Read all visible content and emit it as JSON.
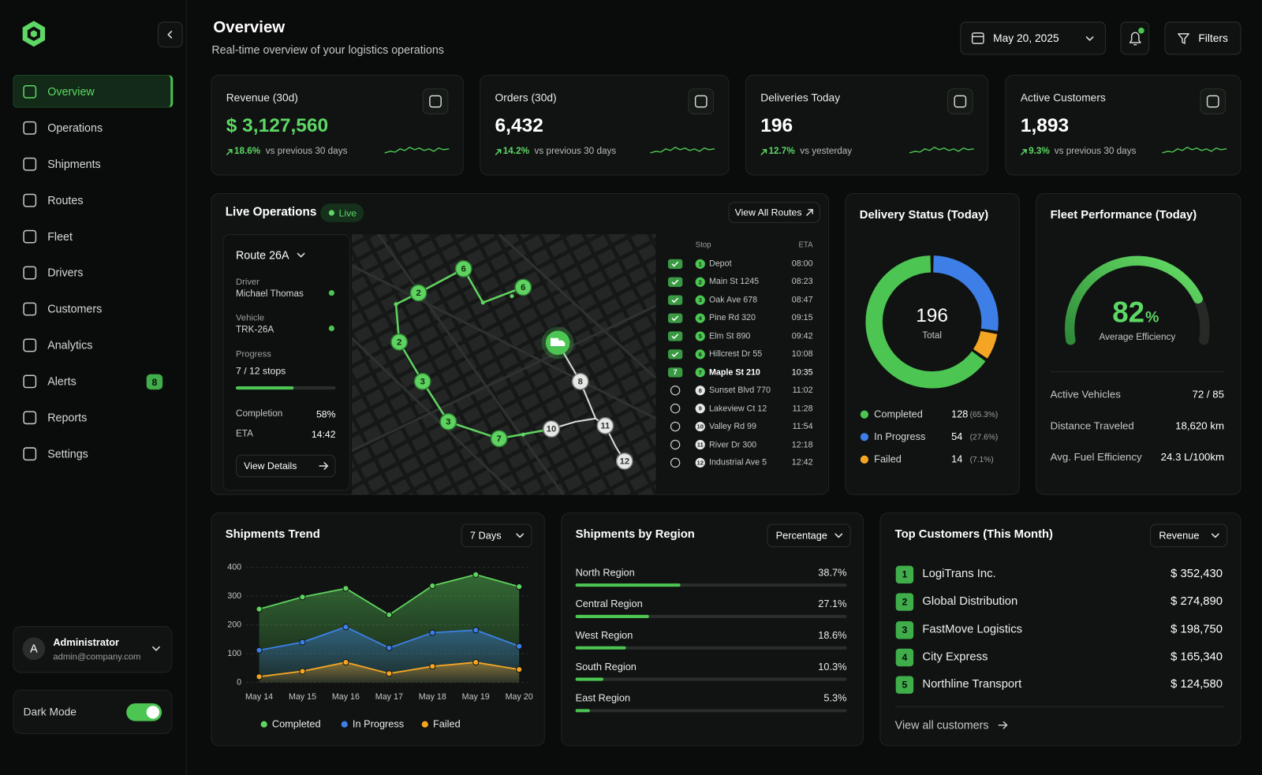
{
  "sidebar": {
    "nav": [
      "Overview",
      "Operations",
      "Shipments",
      "Routes",
      "Fleet",
      "Drivers",
      "Customers",
      "Analytics",
      "Alerts",
      "Reports",
      "Settings"
    ],
    "alerts_count": 8,
    "user": {
      "initial": "A",
      "name": "Administrator",
      "email": "admin@company.com"
    },
    "dark_mode": "Dark Mode"
  },
  "header": {
    "title": "Overview",
    "subtitle": "Real-time overview of your logistics operations",
    "date": "May 20, 2025",
    "filters": "Filters"
  },
  "kpis": [
    {
      "label": "Revenue (30d)",
      "value": "$ 3,127,560",
      "change": "18.6%",
      "note": "vs previous 30 days"
    },
    {
      "label": "Orders (30d)",
      "value": "6,432",
      "change": "14.2%",
      "note": "vs previous 30 days"
    },
    {
      "label": "Deliveries Today",
      "value": "196",
      "change": "12.7%",
      "note": "vs yesterday"
    },
    {
      "label": "Active Customers",
      "value": "1,893",
      "change": "9.3%",
      "note": "vs previous 30 days"
    }
  ],
  "live_operations": {
    "title": "Live Operations",
    "badge": "Live",
    "button": "View All Routes",
    "route": {
      "name": "Route 26A",
      "driver_label": "Driver",
      "driver": "Michael Thomas",
      "vehicle_label": "Vehicle",
      "vehicle": "TRK-26A",
      "progress_label": "Progress",
      "progress": "7 / 12 stops",
      "completion": {
        "label": "Completion",
        "value": 58,
        "value_label": "58%"
      },
      "eta_label": "ETA",
      "eta": "14:42",
      "details_button": "View Details"
    },
    "stops_header": [
      "Stop",
      "ETA"
    ],
    "stops": [
      {
        "number": 1,
        "name": "Depot",
        "eta": "08:00",
        "status": "done"
      },
      {
        "number": 2,
        "name": "Main St 1245",
        "eta": "08:23",
        "status": "done"
      },
      {
        "number": 3,
        "name": "Oak Ave 678",
        "eta": "08:47",
        "status": "done"
      },
      {
        "number": 4,
        "name": "Pine Rd 320",
        "eta": "09:15",
        "status": "done"
      },
      {
        "number": 5,
        "name": "Elm St 890",
        "eta": "09:42",
        "status": "done"
      },
      {
        "number": 6,
        "name": "Hillcrest Dr 55",
        "eta": "10:08",
        "status": "done"
      },
      {
        "number": 7,
        "name": "Maple St 210",
        "eta": "10:35",
        "status": "current"
      },
      {
        "number": 8,
        "name": "Sunset Blvd 770",
        "eta": "11:02",
        "status": "pending"
      },
      {
        "number": 9,
        "name": "Lakeview Ct 12",
        "eta": "11:28",
        "status": "pending"
      },
      {
        "number": 10,
        "name": "Valley Rd 99",
        "eta": "11:54",
        "status": "pending"
      },
      {
        "number": 11,
        "name": "River Dr 300",
        "eta": "12:18",
        "status": "pending"
      },
      {
        "number": 12,
        "name": "Industrial Ave 5",
        "eta": "12:42",
        "status": "pending"
      }
    ]
  },
  "fleet": {
    "title": "Fleet Performance (Today)",
    "efficiency": 82,
    "unit": "%",
    "efficiency_label": "Average Efficiency",
    "range": [
      0,
      100
    ],
    "stats": [
      {
        "label": "Active Vehicles",
        "value": "72 / 85"
      },
      {
        "label": "Distance Traveled",
        "value": "18,620 km"
      },
      {
        "label": "Avg. Fuel Efficiency",
        "value": "24.3 L/100km"
      }
    ]
  },
  "chart_data": [
    {
      "type": "line",
      "title": "Shipments Trend",
      "control": "7 Days",
      "categories": [
        "May 14",
        "May 15",
        "May 16",
        "May 17",
        "May 18",
        "May 19",
        "May 20"
      ],
      "series": [
        {
          "name": "Completed",
          "color": "#5fd35f",
          "values": [
            255,
            297,
            327,
            235,
            336,
            375,
            333
          ]
        },
        {
          "name": "In Progress",
          "color": "#3d7fe6",
          "values": [
            112,
            140,
            193,
            120,
            173,
            182,
            126
          ]
        },
        {
          "name": "Failed",
          "color": "#f5a524",
          "values": [
            20,
            39,
            70,
            31,
            56,
            70,
            45
          ]
        }
      ],
      "ylim": [
        0,
        400
      ],
      "yticks": [
        0,
        100,
        200,
        300,
        400
      ],
      "grid": true,
      "area": true
    },
    {
      "type": "bar",
      "orientation": "horizontal",
      "title": "Shipments by Region",
      "control": "Percentage",
      "categories": [
        "North Region",
        "Central Region",
        "West Region",
        "South Region",
        "East Region"
      ],
      "values": [
        38.7,
        27.1,
        18.6,
        10.3,
        5.3
      ],
      "value_labels": [
        "38.7%",
        "27.1%",
        "18.6%",
        "10.3%",
        "5.3%"
      ],
      "xlim": [
        0,
        100
      ],
      "color": "#4cc552"
    },
    {
      "type": "pie",
      "donut": true,
      "title": "Delivery Status (Today)",
      "center_value": 196,
      "center_label": "Total",
      "categories": [
        "Completed",
        "In Progress",
        "Failed"
      ],
      "values": [
        128,
        54,
        14
      ],
      "percents": [
        65.3,
        27.6,
        7.1
      ],
      "percent_labels": [
        "(65.3%)",
        "(27.6%)",
        "(7.1%)"
      ],
      "colors": [
        "#4cc552",
        "#3d7fe6",
        "#f5a524"
      ]
    }
  ],
  "top_customers": {
    "title": "Top Customers (This Month)",
    "control": "Revenue",
    "rows": [
      {
        "rank": 1,
        "name": "LogiTrans Inc.",
        "revenue": "$ 352,430"
      },
      {
        "rank": 2,
        "name": "Global Distribution",
        "revenue": "$ 274,890"
      },
      {
        "rank": 3,
        "name": "FastMove Logistics",
        "revenue": "$ 198,750"
      },
      {
        "rank": 4,
        "name": "City Express",
        "revenue": "$ 165,340"
      },
      {
        "rank": 5,
        "name": "Northline Transport",
        "revenue": "$ 124,580"
      }
    ],
    "link": "View all customers"
  }
}
